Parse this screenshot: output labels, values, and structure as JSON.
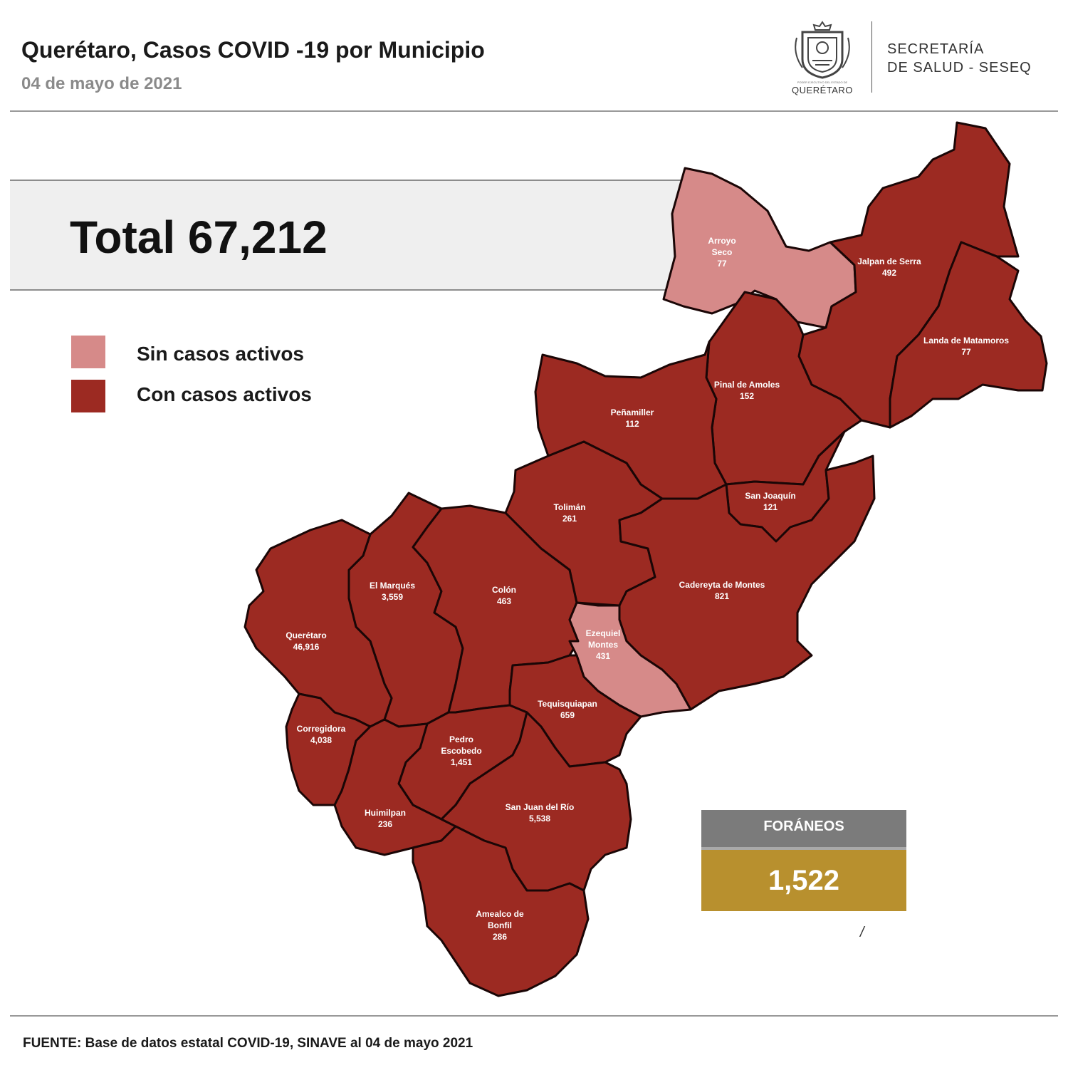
{
  "header": {
    "title": "Querétaro, Casos COVID -19 por Municipio",
    "date": "04 de mayo de 2021",
    "org_line1": "SECRETARÍA",
    "org_line2": "DE SALUD - SESEQ",
    "logo_caption": "QUERÉTARO",
    "logo_caption_small": "PODER EJECUTIVO DEL ESTADO DE"
  },
  "total": {
    "label": "Total 67,212"
  },
  "legend": {
    "items": [
      {
        "label": "Sin casos activos",
        "color": "#d68a89"
      },
      {
        "label": "Con casos activos",
        "color": "#9c2a22"
      }
    ]
  },
  "municipalities": [
    {
      "name": "Arroyo Seco",
      "cases": "77",
      "status": "sin",
      "label_lines": [
        "Arroyo",
        "Seco",
        "77"
      ]
    },
    {
      "name": "Jalpan de Serra",
      "cases": "492",
      "status": "con",
      "label_lines": [
        "Jalpan de Serra",
        "492"
      ]
    },
    {
      "name": "Landa de Matamoros",
      "cases": "77",
      "status": "con",
      "label_lines": [
        "Landa de Matamoros",
        "77"
      ]
    },
    {
      "name": "Pinal de Amoles",
      "cases": "152",
      "status": "con",
      "label_lines": [
        "Pinal de Amoles",
        "152"
      ]
    },
    {
      "name": "Peñamiller",
      "cases": "112",
      "status": "con",
      "label_lines": [
        "Peñamiller",
        "112"
      ]
    },
    {
      "name": "San Joaquín",
      "cases": "121",
      "status": "con",
      "label_lines": [
        "San Joaquín",
        "121"
      ]
    },
    {
      "name": "Tolimán",
      "cases": "261",
      "status": "con",
      "label_lines": [
        "Tolimán",
        "261"
      ]
    },
    {
      "name": "Cadereyta de Montes",
      "cases": "821",
      "status": "con",
      "label_lines": [
        "Cadereyta de Montes",
        "821"
      ]
    },
    {
      "name": "El Marqués",
      "cases": "3,559",
      "status": "con",
      "label_lines": [
        "El  Marqués",
        "3,559"
      ]
    },
    {
      "name": "Colón",
      "cases": "463",
      "status": "con",
      "label_lines": [
        "Colón",
        "463"
      ]
    },
    {
      "name": "Ezequiel Montes",
      "cases": "431",
      "status": "sin",
      "label_lines": [
        "Ezequiel",
        "Montes",
        "431"
      ]
    },
    {
      "name": "Querétaro",
      "cases": "46,916",
      "status": "con",
      "label_lines": [
        "Querétaro",
        "46,916"
      ]
    },
    {
      "name": "Tequisquiapan",
      "cases": "659",
      "status": "con",
      "label_lines": [
        "Tequisquiapan",
        "659"
      ]
    },
    {
      "name": "Corregidora",
      "cases": "4,038",
      "status": "con",
      "label_lines": [
        "Corregidora",
        "4,038"
      ]
    },
    {
      "name": "Pedro Escobedo",
      "cases": "1,451",
      "status": "con",
      "label_lines": [
        "Pedro",
        "Escobedo",
        "1,451"
      ]
    },
    {
      "name": "Huimilpan",
      "cases": "236",
      "status": "con",
      "label_lines": [
        "Huimilpan",
        "236"
      ]
    },
    {
      "name": "San Juan del Río",
      "cases": "5,538",
      "status": "con",
      "label_lines": [
        "San Juan del Río",
        "5,538"
      ]
    },
    {
      "name": "Amealco de Bonfil",
      "cases": "286",
      "status": "con",
      "label_lines": [
        "Amealco de",
        "Bonfil",
        "286"
      ]
    }
  ],
  "foraneos": {
    "label": "FORÁNEOS",
    "value": "1,522"
  },
  "colors": {
    "sin_casos": "#d68a89",
    "con_casos": "#9c2a22",
    "border": "#1a0606",
    "foraneos_head": "#7b7b7b",
    "foraneos_value": "#b8902e"
  },
  "footer": {
    "source": "FUENTE: Base de datos estatal COVID-19, SINAVE al 04 de mayo 2021"
  },
  "misc": {
    "stray_mark": "/"
  }
}
